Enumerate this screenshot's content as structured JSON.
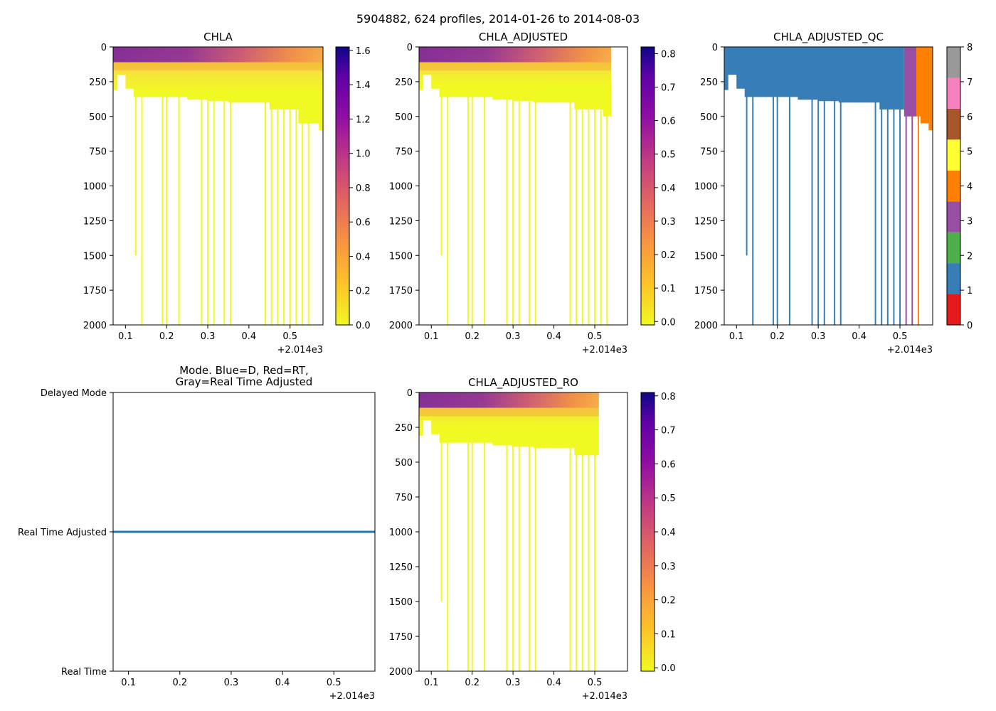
{
  "suptitle": "5904882, 624 profiles, 2014-01-26 to 2014-08-03",
  "offset_label": "+2.014e3",
  "colors": {
    "qc_1": "#377eb8",
    "qc_3": "#984ea3",
    "qc_4": "#ff7f00",
    "mode_line": "#1f77b4",
    "axis": "#000000"
  },
  "chart_data": [
    {
      "id": "chla",
      "type": "heatmap",
      "title": "CHLA",
      "xlim": [
        0.07,
        0.58
      ],
      "ylim": [
        2000,
        0
      ],
      "xticks": [
        0.1,
        0.2,
        0.3,
        0.4,
        0.5
      ],
      "yticks": [
        0,
        250,
        500,
        750,
        1000,
        1250,
        1500,
        1750,
        2000
      ],
      "colormap": "plasma_r",
      "colorbar": {
        "min": 0,
        "max": 1.62,
        "ticks": [
          "0.0",
          "0.2",
          "0.4",
          "0.6",
          "0.8",
          "1.0",
          "1.2",
          "1.4",
          "1.6"
        ],
        "tick_values": [
          0,
          0.2,
          0.4,
          0.6,
          0.8,
          1.0,
          1.2,
          1.4,
          1.6
        ]
      },
      "block": {
        "depth_profile": [
          [
            0.07,
            310
          ],
          [
            0.08,
            200
          ],
          [
            0.1,
            300
          ],
          [
            0.12,
            360
          ],
          [
            0.2,
            360
          ],
          [
            0.25,
            380
          ],
          [
            0.3,
            390
          ],
          [
            0.35,
            400
          ],
          [
            0.42,
            400
          ],
          [
            0.45,
            450
          ],
          [
            0.5,
            450
          ],
          [
            0.52,
            550
          ],
          [
            0.55,
            550
          ],
          [
            0.57,
            600
          ],
          [
            0.58,
            600
          ]
        ],
        "x_end": 0.58
      },
      "deep_profiles": [
        {
          "x": 0.125,
          "depth": 1500
        },
        {
          "x": 0.14,
          "depth": 2000
        },
        {
          "x": 0.19,
          "depth": 2000
        },
        {
          "x": 0.2,
          "depth": 2000
        },
        {
          "x": 0.23,
          "depth": 2000
        },
        {
          "x": 0.285,
          "depth": 2000
        },
        {
          "x": 0.3,
          "depth": 2000
        },
        {
          "x": 0.315,
          "depth": 2000
        },
        {
          "x": 0.34,
          "depth": 2000
        },
        {
          "x": 0.355,
          "depth": 2000
        },
        {
          "x": 0.44,
          "depth": 2000
        },
        {
          "x": 0.455,
          "depth": 2000
        },
        {
          "x": 0.47,
          "depth": 2000
        },
        {
          "x": 0.485,
          "depth": 2000
        },
        {
          "x": 0.5,
          "depth": 2000
        },
        {
          "x": 0.515,
          "depth": 2000
        },
        {
          "x": 0.53,
          "depth": 2000
        },
        {
          "x": 0.545,
          "depth": 2000
        }
      ]
    },
    {
      "id": "chla_adjusted",
      "type": "heatmap",
      "title": "CHLA_ADJUSTED",
      "xlim": [
        0.07,
        0.58
      ],
      "ylim": [
        2000,
        0
      ],
      "xticks": [
        0.1,
        0.2,
        0.3,
        0.4,
        0.5
      ],
      "yticks": [
        0,
        250,
        500,
        750,
        1000,
        1250,
        1500,
        1750,
        2000
      ],
      "colormap": "plasma_r",
      "colorbar": {
        "min": -0.01,
        "max": 0.82,
        "ticks": [
          "0.0",
          "0.1",
          "0.2",
          "0.3",
          "0.4",
          "0.5",
          "0.6",
          "0.7",
          "0.8"
        ],
        "tick_values": [
          0,
          0.1,
          0.2,
          0.3,
          0.4,
          0.5,
          0.6,
          0.7,
          0.8
        ]
      },
      "block": {
        "depth_profile": [
          [
            0.07,
            310
          ],
          [
            0.08,
            200
          ],
          [
            0.1,
            300
          ],
          [
            0.12,
            360
          ],
          [
            0.2,
            360
          ],
          [
            0.25,
            380
          ],
          [
            0.3,
            390
          ],
          [
            0.35,
            400
          ],
          [
            0.42,
            400
          ],
          [
            0.45,
            450
          ],
          [
            0.5,
            450
          ],
          [
            0.52,
            500
          ],
          [
            0.54,
            500
          ]
        ],
        "x_end": 0.54
      },
      "deep_profiles": [
        {
          "x": 0.125,
          "depth": 1500
        },
        {
          "x": 0.14,
          "depth": 2000
        },
        {
          "x": 0.19,
          "depth": 2000
        },
        {
          "x": 0.2,
          "depth": 2000
        },
        {
          "x": 0.23,
          "depth": 2000
        },
        {
          "x": 0.285,
          "depth": 2000
        },
        {
          "x": 0.3,
          "depth": 2000
        },
        {
          "x": 0.315,
          "depth": 2000
        },
        {
          "x": 0.34,
          "depth": 2000
        },
        {
          "x": 0.355,
          "depth": 2000
        },
        {
          "x": 0.44,
          "depth": 2000
        },
        {
          "x": 0.455,
          "depth": 2000
        },
        {
          "x": 0.47,
          "depth": 2000
        },
        {
          "x": 0.485,
          "depth": 2000
        },
        {
          "x": 0.5,
          "depth": 2000
        },
        {
          "x": 0.515,
          "depth": 2000
        },
        {
          "x": 0.53,
          "depth": 2000
        }
      ]
    },
    {
      "id": "chla_adjusted_qc",
      "type": "heatmap",
      "title": "CHLA_ADJUSTED_QC",
      "xlim": [
        0.07,
        0.58
      ],
      "ylim": [
        2000,
        0
      ],
      "xticks": [
        0.1,
        0.2,
        0.3,
        0.4,
        0.5
      ],
      "yticks": [
        0,
        250,
        500,
        750,
        1000,
        1250,
        1500,
        1750,
        2000
      ],
      "colormap": "Set1",
      "colorbar": {
        "min": 0,
        "max": 8,
        "ticks": [
          "0",
          "1",
          "2",
          "3",
          "4",
          "5",
          "6",
          "7",
          "8"
        ],
        "tick_values": [
          0,
          1,
          2,
          3,
          4,
          5,
          6,
          7,
          8
        ],
        "bands": [
          "#e41a1c",
          "#377eb8",
          "#4daf4a",
          "#984ea3",
          "#ff7f00",
          "#ffff33",
          "#a65628",
          "#f781bf",
          "#999999"
        ]
      },
      "regions": [
        {
          "qc": 1,
          "x_start": 0.07,
          "x_end": 0.51
        },
        {
          "qc": 3,
          "x_start": 0.51,
          "x_end": 0.54
        },
        {
          "qc": 4,
          "x_start": 0.54,
          "x_end": 0.58
        }
      ],
      "block": {
        "depth_profile": [
          [
            0.07,
            310
          ],
          [
            0.08,
            200
          ],
          [
            0.1,
            300
          ],
          [
            0.12,
            360
          ],
          [
            0.2,
            360
          ],
          [
            0.25,
            380
          ],
          [
            0.3,
            390
          ],
          [
            0.35,
            400
          ],
          [
            0.42,
            400
          ],
          [
            0.45,
            450
          ],
          [
            0.5,
            450
          ],
          [
            0.51,
            500
          ],
          [
            0.54,
            500
          ],
          [
            0.55,
            550
          ],
          [
            0.57,
            600
          ],
          [
            0.58,
            600
          ]
        ],
        "x_end": 0.58
      },
      "deep_profiles": [
        {
          "x": 0.125,
          "depth": 1500,
          "qc": 1
        },
        {
          "x": 0.14,
          "depth": 2000,
          "qc": 1
        },
        {
          "x": 0.19,
          "depth": 2000,
          "qc": 1
        },
        {
          "x": 0.2,
          "depth": 2000,
          "qc": 1
        },
        {
          "x": 0.23,
          "depth": 2000,
          "qc": 1
        },
        {
          "x": 0.285,
          "depth": 2000,
          "qc": 1
        },
        {
          "x": 0.3,
          "depth": 2000,
          "qc": 1
        },
        {
          "x": 0.315,
          "depth": 2000,
          "qc": 1
        },
        {
          "x": 0.34,
          "depth": 2000,
          "qc": 1
        },
        {
          "x": 0.355,
          "depth": 2000,
          "qc": 1
        },
        {
          "x": 0.44,
          "depth": 2000,
          "qc": 1
        },
        {
          "x": 0.455,
          "depth": 2000,
          "qc": 1
        },
        {
          "x": 0.47,
          "depth": 2000,
          "qc": 1
        },
        {
          "x": 0.485,
          "depth": 2000,
          "qc": 1
        },
        {
          "x": 0.5,
          "depth": 2000,
          "qc": 1
        },
        {
          "x": 0.515,
          "depth": 2000,
          "qc": 3
        },
        {
          "x": 0.53,
          "depth": 2000,
          "qc": 3
        },
        {
          "x": 0.545,
          "depth": 2000,
          "qc": 4
        }
      ]
    },
    {
      "id": "mode",
      "type": "line",
      "title_lines": [
        "Mode. Blue=D, Red=RT,",
        "Gray=Real Time Adjusted"
      ],
      "xlim": [
        0.07,
        0.58
      ],
      "ylim": [
        0,
        2
      ],
      "xticks": [
        0.1,
        0.2,
        0.3,
        0.4,
        0.5
      ],
      "yticks": [
        0,
        1,
        2
      ],
      "ytick_labels": [
        "Real Time",
        "Real Time Adjusted",
        "Delayed Mode"
      ],
      "series": [
        {
          "name": "mode",
          "x": [
            0.07,
            0.58
          ],
          "y": [
            1,
            1
          ]
        }
      ]
    },
    {
      "id": "chla_adjusted_ro",
      "type": "heatmap",
      "title": "CHLA_ADJUSTED_RO",
      "xlim": [
        0.07,
        0.58
      ],
      "ylim": [
        2000,
        0
      ],
      "xticks": [
        0.1,
        0.2,
        0.3,
        0.4,
        0.5
      ],
      "yticks": [
        0,
        250,
        500,
        750,
        1000,
        1250,
        1500,
        1750,
        2000
      ],
      "colormap": "plasma_r",
      "colorbar": {
        "min": -0.01,
        "max": 0.81,
        "ticks": [
          "0.0",
          "0.1",
          "0.2",
          "0.3",
          "0.4",
          "0.5",
          "0.6",
          "0.7",
          "0.8"
        ],
        "tick_values": [
          0,
          0.1,
          0.2,
          0.3,
          0.4,
          0.5,
          0.6,
          0.7,
          0.8
        ]
      },
      "block": {
        "depth_profile": [
          [
            0.07,
            310
          ],
          [
            0.08,
            200
          ],
          [
            0.1,
            300
          ],
          [
            0.12,
            360
          ],
          [
            0.2,
            360
          ],
          [
            0.25,
            380
          ],
          [
            0.3,
            390
          ],
          [
            0.35,
            400
          ],
          [
            0.42,
            400
          ],
          [
            0.45,
            450
          ],
          [
            0.51,
            450
          ]
        ],
        "x_end": 0.51
      },
      "deep_profiles": [
        {
          "x": 0.125,
          "depth": 1500
        },
        {
          "x": 0.14,
          "depth": 2000
        },
        {
          "x": 0.19,
          "depth": 2000
        },
        {
          "x": 0.2,
          "depth": 2000
        },
        {
          "x": 0.23,
          "depth": 2000
        },
        {
          "x": 0.285,
          "depth": 2000
        },
        {
          "x": 0.3,
          "depth": 2000
        },
        {
          "x": 0.315,
          "depth": 2000
        },
        {
          "x": 0.34,
          "depth": 2000
        },
        {
          "x": 0.355,
          "depth": 2000
        },
        {
          "x": 0.44,
          "depth": 2000
        },
        {
          "x": 0.455,
          "depth": 2000
        },
        {
          "x": 0.47,
          "depth": 2000
        },
        {
          "x": 0.485,
          "depth": 2000
        },
        {
          "x": 0.5,
          "depth": 2000
        }
      ]
    }
  ]
}
